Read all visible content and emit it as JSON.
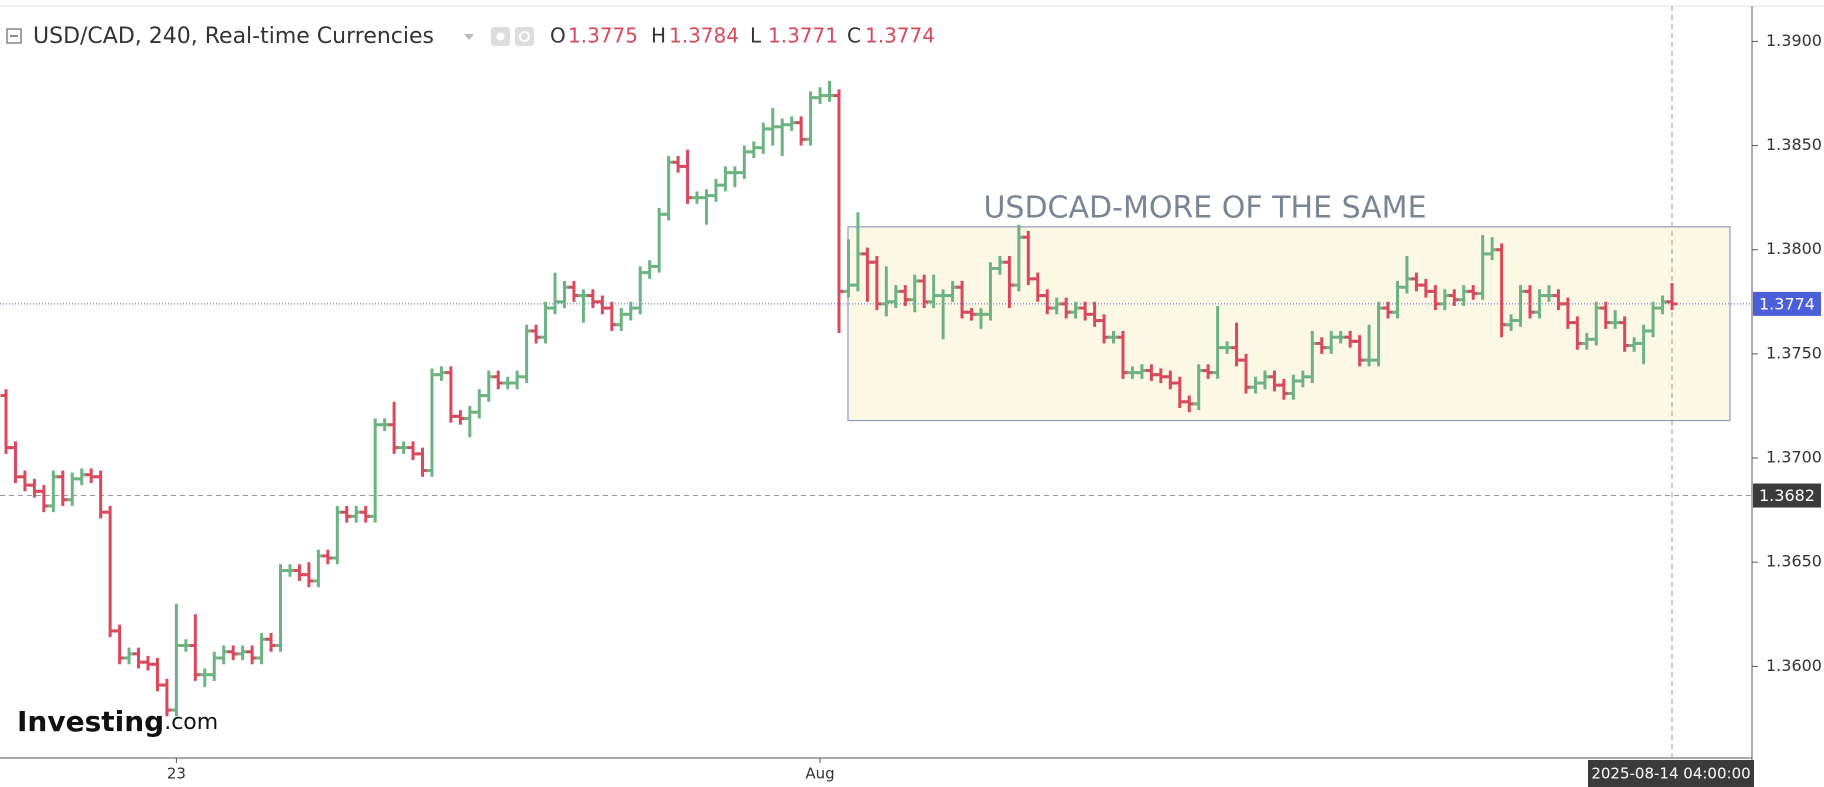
{
  "chart_data": {
    "type": "ohlc",
    "title": "USD/CAD, 240, Real-time Currencies",
    "ohlc_labels": [
      "O",
      "H",
      "L",
      "C"
    ],
    "up_color": "#6db381",
    "down_color": "#d9485b",
    "last_price_color": "#4a5fd8",
    "ylim": [
      1.3556,
      1.3917
    ],
    "yticks": [
      {
        "value": 1.36,
        "label": "1.3600"
      },
      {
        "value": 1.365,
        "label": "1.3650"
      },
      {
        "value": 1.37,
        "label": "1.3700"
      },
      {
        "value": 1.375,
        "label": "1.3750"
      },
      {
        "value": 1.38,
        "label": "1.3800"
      },
      {
        "value": 1.385,
        "label": "1.3850"
      },
      {
        "value": 1.39,
        "label": "1.3900"
      }
    ],
    "crosshair": {
      "price": 1.3682,
      "time": "2025-08-14 04:00:00"
    },
    "annotation": {
      "text": "USDCAD-MORE OF THE SAME",
      "top": 1.3811,
      "bottom": 1.3718
    },
    "watermark": [
      "Investing",
      ".com"
    ],
    "categories": [
      null,
      null,
      null,
      null,
      null,
      null,
      null,
      null,
      null,
      null,
      null,
      null,
      null,
      null,
      null,
      null,
      null,
      null,
      "23",
      null,
      null,
      null,
      null,
      null,
      null,
      null,
      null,
      null,
      null,
      null,
      null,
      null,
      null,
      null,
      null,
      null,
      null,
      null,
      null,
      null,
      null,
      null,
      null,
      null,
      null,
      null,
      null,
      null,
      null,
      null,
      null,
      null,
      null,
      null,
      null,
      null,
      null,
      null,
      null,
      null,
      null,
      null,
      null,
      null,
      null,
      null,
      null,
      null,
      null,
      null,
      null,
      null,
      null,
      null,
      null,
      null,
      null,
      null,
      null,
      null,
      null,
      null,
      null,
      null,
      null,
      null,
      "Aug",
      null,
      null,
      null,
      null,
      null,
      null,
      null,
      null,
      null,
      null,
      null,
      null,
      null,
      null,
      null,
      null,
      null,
      null,
      null,
      null,
      null,
      null,
      null,
      null,
      null,
      null,
      null,
      null,
      null,
      null,
      null,
      null,
      null,
      null,
      null,
      null,
      null,
      null,
      null,
      null,
      null,
      null,
      null,
      null,
      null,
      null,
      null,
      null,
      null,
      null,
      null,
      null,
      null,
      null,
      null,
      null,
      null,
      null,
      null,
      null,
      null,
      null,
      null,
      null,
      null,
      null,
      null,
      null,
      null,
      null,
      null,
      null,
      null,
      null,
      null,
      null,
      null,
      null,
      null,
      null,
      null,
      null,
      null,
      null,
      null,
      null,
      null,
      null,
      null,
      null
    ],
    "open": [
      1.373,
      1.3705,
      1.3691,
      1.3687,
      1.3684,
      1.3677,
      1.3691,
      1.368,
      1.369,
      1.3692,
      1.3691,
      1.3674,
      1.3617,
      1.3604,
      1.3606,
      1.3602,
      1.3601,
      1.3591,
      1.3579,
      1.361,
      1.361,
      1.3596,
      1.3596,
      1.3604,
      1.3607,
      1.3606,
      1.3607,
      1.3604,
      1.3613,
      1.361,
      1.3646,
      1.3646,
      1.3644,
      1.3641,
      1.3653,
      1.3652,
      1.3674,
      1.3672,
      1.3674,
      1.3672,
      1.3716,
      1.3716,
      1.3705,
      1.3705,
      1.3702,
      1.3694,
      1.374,
      1.3741,
      1.372,
      1.3719,
      1.3722,
      1.373,
      1.3739,
      1.3736,
      1.3736,
      1.3739,
      1.3761,
      1.3758,
      1.3772,
      1.3775,
      1.3782,
      1.3778,
      1.3778,
      1.3775,
      1.3772,
      1.3764,
      1.3769,
      1.3772,
      1.3789,
      1.3792,
      1.3817,
      1.3842,
      1.384,
      1.3825,
      1.3825,
      1.3826,
      1.3831,
      1.3837,
      1.3837,
      1.3847,
      1.3849,
      1.3858,
      1.3859,
      1.386,
      1.3861,
      1.3853,
      1.3873,
      1.3874,
      1.3874,
      1.378,
      1.3783,
      1.3798,
      1.3794,
      1.3774,
      1.3775,
      1.378,
      1.3776,
      1.3785,
      1.3775,
      1.3778,
      1.3778,
      1.3782,
      1.377,
      1.3769,
      1.3769,
      1.3791,
      1.3794,
      1.3783,
      1.3806,
      1.3786,
      1.3778,
      1.3772,
      1.3774,
      1.377,
      1.3772,
      1.3769,
      1.3766,
      1.3758,
      1.3758,
      1.3741,
      1.3741,
      1.3742,
      1.374,
      1.3739,
      1.3736,
      1.3727,
      1.3726,
      1.3742,
      1.3741,
      1.3753,
      1.3753,
      1.3747,
      1.3734,
      1.3736,
      1.3739,
      1.3735,
      1.3731,
      1.3737,
      1.3739,
      1.3755,
      1.3753,
      1.3758,
      1.3758,
      1.3756,
      1.3747,
      1.3747,
      1.3772,
      1.377,
      1.3782,
      1.3786,
      1.3783,
      1.378,
      1.3774,
      1.3778,
      1.3776,
      1.378,
      1.3779,
      1.3798,
      1.38,
      1.3764,
      1.3766,
      1.378,
      1.377,
      1.3778,
      1.3778,
      1.3774,
      1.3765,
      1.3755,
      1.3757,
      1.3772,
      1.3765,
      1.3765,
      1.3754,
      1.3755,
      1.3761,
      1.3772,
      1.3775
    ],
    "high": [
      1.3733,
      1.3708,
      1.3694,
      1.369,
      1.3687,
      1.3694,
      1.3694,
      1.3693,
      1.3695,
      1.3695,
      1.3694,
      1.3677,
      1.362,
      1.3609,
      1.3609,
      1.3605,
      1.3604,
      1.3594,
      1.363,
      1.3613,
      1.3625,
      1.3599,
      1.3607,
      1.361,
      1.361,
      1.361,
      1.361,
      1.3616,
      1.3616,
      1.3649,
      1.3649,
      1.3649,
      1.365,
      1.3656,
      1.3656,
      1.3677,
      1.3677,
      1.3677,
      1.3677,
      1.3719,
      1.3719,
      1.3727,
      1.3708,
      1.3708,
      1.3705,
      1.3743,
      1.3744,
      1.3744,
      1.3723,
      1.3725,
      1.3733,
      1.3742,
      1.3742,
      1.3739,
      1.3742,
      1.3764,
      1.3764,
      1.3775,
      1.3789,
      1.3785,
      1.3785,
      1.3781,
      1.3781,
      1.3778,
      1.3775,
      1.3772,
      1.3775,
      1.3792,
      1.3795,
      1.382,
      1.3845,
      1.3845,
      1.3848,
      1.3828,
      1.3829,
      1.3834,
      1.384,
      1.384,
      1.385,
      1.3852,
      1.3861,
      1.3868,
      1.3863,
      1.3864,
      1.3864,
      1.3876,
      1.3878,
      1.3881,
      1.3877,
      1.3805,
      1.3818,
      1.3801,
      1.3797,
      1.3792,
      1.3783,
      1.3783,
      1.3788,
      1.3788,
      1.3788,
      1.3781,
      1.3785,
      1.3785,
      1.3772,
      1.3772,
      1.3794,
      1.3797,
      1.3797,
      1.3812,
      1.3809,
      1.3789,
      1.3781,
      1.3777,
      1.3777,
      1.3775,
      1.3775,
      1.3775,
      1.3769,
      1.3761,
      1.3761,
      1.3744,
      1.3745,
      1.3745,
      1.3743,
      1.3742,
      1.3739,
      1.373,
      1.3745,
      1.3745,
      1.3773,
      1.3756,
      1.3765,
      1.375,
      1.3739,
      1.3742,
      1.3742,
      1.3738,
      1.374,
      1.3742,
      1.3761,
      1.3758,
      1.3761,
      1.3761,
      1.3761,
      1.3759,
      1.3764,
      1.3775,
      1.3775,
      1.3785,
      1.3797,
      1.3789,
      1.3786,
      1.3783,
      1.3781,
      1.3781,
      1.3783,
      1.3783,
      1.3807,
      1.3806,
      1.3803,
      1.3769,
      1.3783,
      1.3783,
      1.3781,
      1.3783,
      1.3781,
      1.3777,
      1.3768,
      1.376,
      1.3775,
      1.3775,
      1.3771,
      1.3768,
      1.3758,
      1.3764,
      1.3775,
      1.3778,
      1.3784
    ],
    "low": [
      1.3702,
      1.3688,
      1.3684,
      1.3681,
      1.3674,
      1.3674,
      1.3677,
      1.3677,
      1.3687,
      1.3688,
      1.3671,
      1.3614,
      1.3601,
      1.3601,
      1.3599,
      1.3598,
      1.3588,
      1.3576,
      1.3576,
      1.3607,
      1.3593,
      1.359,
      1.3593,
      1.3601,
      1.3603,
      1.3603,
      1.3601,
      1.3601,
      1.3607,
      1.3607,
      1.3643,
      1.3641,
      1.3638,
      1.3638,
      1.3649,
      1.3649,
      1.3669,
      1.3669,
      1.3669,
      1.3669,
      1.3713,
      1.3702,
      1.3702,
      1.3699,
      1.3691,
      1.3691,
      1.3737,
      1.3717,
      1.3716,
      1.371,
      1.3719,
      1.3727,
      1.3733,
      1.3733,
      1.3733,
      1.3736,
      1.3755,
      1.3755,
      1.3769,
      1.3772,
      1.3775,
      1.3765,
      1.3772,
      1.3769,
      1.3761,
      1.3761,
      1.3766,
      1.3769,
      1.3786,
      1.3789,
      1.3814,
      1.3837,
      1.3822,
      1.3822,
      1.3812,
      1.3823,
      1.3828,
      1.383,
      1.3834,
      1.3844,
      1.3846,
      1.385,
      1.3845,
      1.3857,
      1.385,
      1.385,
      1.387,
      1.3871,
      1.376,
      1.3777,
      1.378,
      1.3775,
      1.3771,
      1.3768,
      1.3772,
      1.3773,
      1.377,
      1.3772,
      1.3772,
      1.3757,
      1.3775,
      1.3767,
      1.3766,
      1.3762,
      1.3766,
      1.3788,
      1.3772,
      1.378,
      1.3783,
      1.3775,
      1.3769,
      1.3769,
      1.3767,
      1.3767,
      1.3766,
      1.3763,
      1.3755,
      1.3755,
      1.3738,
      1.3738,
      1.3738,
      1.3737,
      1.3736,
      1.3733,
      1.3724,
      1.3722,
      1.3723,
      1.3738,
      1.3738,
      1.375,
      1.3744,
      1.3731,
      1.3731,
      1.3733,
      1.3732,
      1.3728,
      1.3728,
      1.3734,
      1.3736,
      1.375,
      1.375,
      1.3755,
      1.3753,
      1.3744,
      1.3744,
      1.3744,
      1.3767,
      1.3767,
      1.3779,
      1.378,
      1.3777,
      1.3771,
      1.3771,
      1.3773,
      1.3773,
      1.3776,
      1.3776,
      1.3795,
      1.3758,
      1.3761,
      1.3763,
      1.3767,
      1.3767,
      1.3775,
      1.3771,
      1.3762,
      1.3752,
      1.3752,
      1.3754,
      1.3762,
      1.3762,
      1.3751,
      1.3751,
      1.3745,
      1.3758,
      1.3769,
      1.3771
    ],
    "close": [
      1.3705,
      1.3691,
      1.3687,
      1.3684,
      1.3677,
      1.3691,
      1.368,
      1.369,
      1.3692,
      1.3691,
      1.3674,
      1.3617,
      1.3604,
      1.3606,
      1.3602,
      1.3601,
      1.3591,
      1.3579,
      1.361,
      1.361,
      1.3596,
      1.3596,
      1.3604,
      1.3607,
      1.3606,
      1.3607,
      1.3604,
      1.3613,
      1.361,
      1.3646,
      1.3646,
      1.3644,
      1.3641,
      1.3653,
      1.3652,
      1.3674,
      1.3672,
      1.3674,
      1.3672,
      1.3716,
      1.3716,
      1.3705,
      1.3705,
      1.3702,
      1.3694,
      1.374,
      1.3741,
      1.372,
      1.3719,
      1.3722,
      1.373,
      1.3739,
      1.3736,
      1.3736,
      1.3739,
      1.3761,
      1.3758,
      1.3772,
      1.3775,
      1.3782,
      1.3778,
      1.3778,
      1.3775,
      1.3772,
      1.3764,
      1.3769,
      1.3772,
      1.3789,
      1.3792,
      1.3817,
      1.3842,
      1.384,
      1.3825,
      1.3825,
      1.3826,
      1.3831,
      1.3837,
      1.3837,
      1.3847,
      1.3849,
      1.3858,
      1.3859,
      1.386,
      1.3861,
      1.3853,
      1.3873,
      1.3874,
      1.3874,
      1.378,
      1.3783,
      1.3798,
      1.3794,
      1.3774,
      1.3775,
      1.378,
      1.3776,
      1.3785,
      1.3775,
      1.3778,
      1.3778,
      1.3782,
      1.377,
      1.3769,
      1.3769,
      1.3791,
      1.3794,
      1.3783,
      1.3806,
      1.3786,
      1.3778,
      1.3772,
      1.3774,
      1.377,
      1.3772,
      1.3769,
      1.3766,
      1.3758,
      1.3758,
      1.3741,
      1.3741,
      1.3742,
      1.374,
      1.3739,
      1.3736,
      1.3727,
      1.3726,
      1.3742,
      1.3741,
      1.3753,
      1.3753,
      1.3747,
      1.3734,
      1.3736,
      1.3739,
      1.3735,
      1.3731,
      1.3737,
      1.3739,
      1.3755,
      1.3753,
      1.3758,
      1.3758,
      1.3756,
      1.3747,
      1.3747,
      1.3772,
      1.377,
      1.3782,
      1.3786,
      1.3783,
      1.378,
      1.3774,
      1.3778,
      1.3776,
      1.378,
      1.3779,
      1.3798,
      1.38,
      1.3764,
      1.3766,
      1.378,
      1.377,
      1.3778,
      1.3778,
      1.3774,
      1.3765,
      1.3755,
      1.3757,
      1.3772,
      1.3765,
      1.3765,
      1.3754,
      1.3755,
      1.3761,
      1.3772,
      1.3775,
      1.3774
    ]
  }
}
